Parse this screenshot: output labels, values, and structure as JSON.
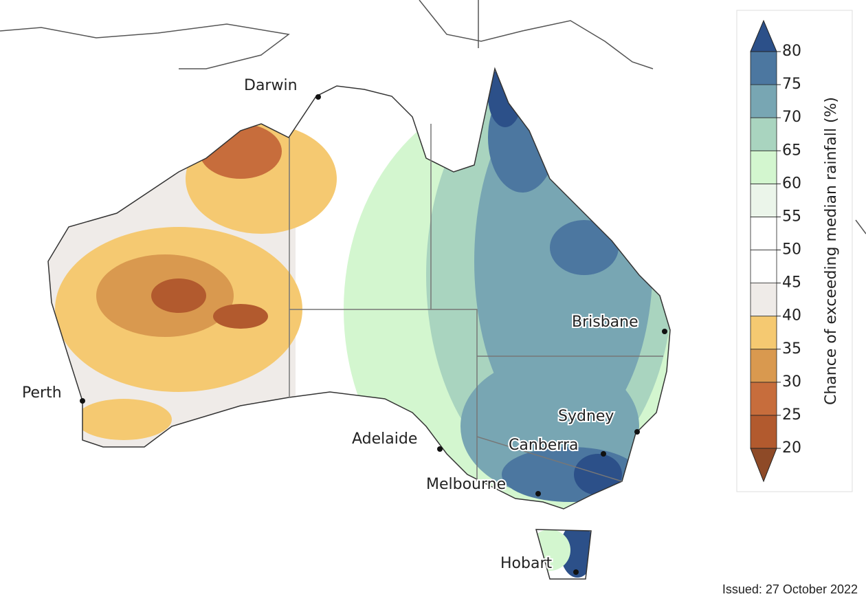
{
  "map": {
    "cities": [
      "Darwin",
      "Perth",
      "Adelaide",
      "Melbourne",
      "Hobart",
      "Canberra",
      "Sydney",
      "Brisbane"
    ]
  },
  "legend": {
    "title": "Chance of exceeding median rainfall (%)",
    "ticks": [
      20,
      25,
      30,
      35,
      40,
      45,
      50,
      55,
      60,
      65,
      70,
      75,
      80
    ],
    "colors": [
      "#b25a2e",
      "#c76d3c",
      "#d9994f",
      "#f5c971",
      "#efebe8",
      "#ffffff",
      "#ffffff",
      "#ebf5ea",
      "#d3f6cf",
      "#a9d4bf",
      "#78a6b3",
      "#4c77a0"
    ],
    "under_color": "#8e4a27",
    "over_color": "#2c5089"
  },
  "footer": {
    "issued": "Issued: 27 October 2022"
  }
}
